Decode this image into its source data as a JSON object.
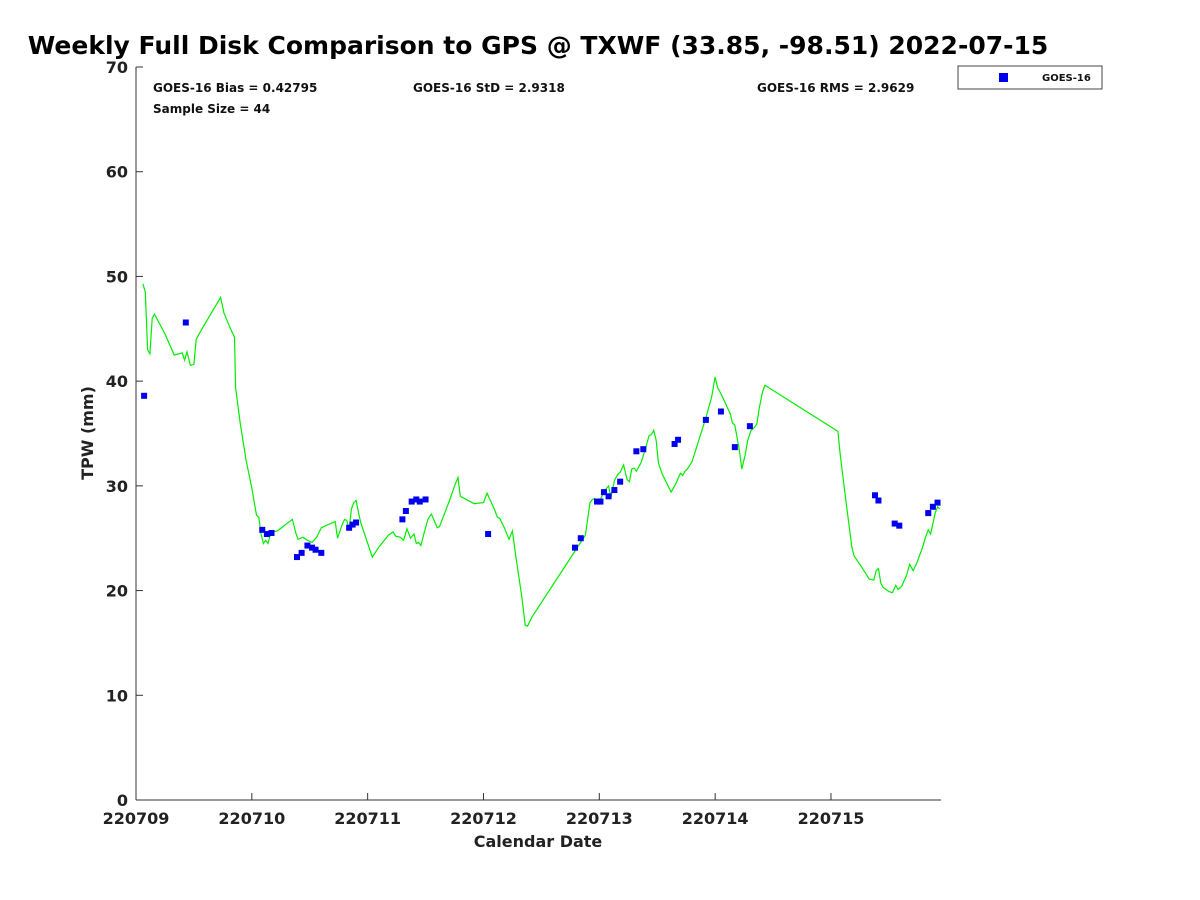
{
  "chart_data": {
    "type": "scatter",
    "title": "Weekly Full Disk Comparison to GPS @ TXWF (33.85, -98.51) 2022-07-15",
    "xlabel": "Calendar Date",
    "ylabel": "TPW (mm)",
    "xlim": [
      0,
      6.95
    ],
    "ylim": [
      0,
      70
    ],
    "yticks": [
      0,
      10,
      20,
      30,
      40,
      50,
      60,
      70
    ],
    "xticks": [
      {
        "value": 0,
        "label": "220709"
      },
      {
        "value": 1,
        "label": "220710"
      },
      {
        "value": 2,
        "label": "220711"
      },
      {
        "value": 3,
        "label": "220712"
      },
      {
        "value": 4,
        "label": "220713"
      },
      {
        "value": 5,
        "label": "220714"
      },
      {
        "value": 6,
        "label": "220715"
      }
    ],
    "stats": {
      "bias": "GOES-16 Bias = 0.42795",
      "std": "GOES-16 StD = 2.9318",
      "rms": "GOES-16 RMS = 2.9629",
      "sample_size": "Sample Size = 44"
    },
    "legend": {
      "label": "GOES-16",
      "color": "#0000ee",
      "position": "top-right"
    },
    "gps_series": {
      "name": "GPS",
      "color": "#00ee00",
      "points": [
        [
          0.06,
          49.3
        ],
        [
          0.08,
          48.5
        ],
        [
          0.1,
          43.0
        ],
        [
          0.12,
          42.6
        ],
        [
          0.14,
          46.0
        ],
        [
          0.16,
          46.4
        ],
        [
          0.25,
          44.5
        ],
        [
          0.33,
          42.5
        ],
        [
          0.4,
          42.7
        ],
        [
          0.42,
          42.0
        ],
        [
          0.44,
          42.8
        ],
        [
          0.47,
          41.5
        ],
        [
          0.5,
          41.6
        ],
        [
          0.52,
          44.0
        ],
        [
          0.57,
          45.0
        ],
        [
          0.73,
          48.0
        ],
        [
          0.76,
          46.5
        ],
        [
          0.82,
          44.9
        ],
        [
          0.85,
          44.2
        ],
        [
          0.86,
          39.4
        ],
        [
          0.9,
          36.0
        ],
        [
          0.95,
          32.5
        ],
        [
          1.0,
          29.8
        ],
        [
          1.04,
          27.2
        ],
        [
          1.06,
          27.0
        ],
        [
          1.08,
          25.4
        ],
        [
          1.1,
          24.5
        ],
        [
          1.12,
          24.8
        ],
        [
          1.14,
          24.5
        ],
        [
          1.16,
          25.4
        ],
        [
          1.18,
          25.6
        ],
        [
          1.22,
          25.7
        ],
        [
          1.35,
          26.8
        ],
        [
          1.38,
          25.5
        ],
        [
          1.4,
          24.9
        ],
        [
          1.44,
          25.1
        ],
        [
          1.48,
          24.8
        ],
        [
          1.52,
          24.6
        ],
        [
          1.56,
          25.1
        ],
        [
          1.6,
          26.0
        ],
        [
          1.72,
          26.6
        ],
        [
          1.74,
          25.0
        ],
        [
          1.78,
          26.3
        ],
        [
          1.8,
          26.8
        ],
        [
          1.82,
          26.7
        ],
        [
          1.84,
          25.8
        ],
        [
          1.86,
          27.8
        ],
        [
          1.88,
          28.4
        ],
        [
          1.9,
          28.6
        ],
        [
          1.92,
          27.5
        ],
        [
          1.94,
          26.5
        ],
        [
          2.04,
          23.2
        ],
        [
          2.1,
          24.2
        ],
        [
          2.18,
          25.3
        ],
        [
          2.22,
          25.6
        ],
        [
          2.24,
          25.2
        ],
        [
          2.28,
          25.1
        ],
        [
          2.31,
          24.8
        ],
        [
          2.34,
          25.9
        ],
        [
          2.37,
          25.0
        ],
        [
          2.4,
          25.4
        ],
        [
          2.42,
          24.5
        ],
        [
          2.44,
          24.6
        ],
        [
          2.46,
          24.3
        ],
        [
          2.49,
          25.6
        ],
        [
          2.52,
          26.8
        ],
        [
          2.55,
          27.3
        ],
        [
          2.57,
          26.8
        ],
        [
          2.6,
          26.0
        ],
        [
          2.62,
          26.1
        ],
        [
          2.71,
          28.7
        ],
        [
          2.75,
          30.0
        ],
        [
          2.78,
          30.8
        ],
        [
          2.8,
          29.0
        ],
        [
          2.92,
          28.3
        ],
        [
          3.0,
          28.4
        ],
        [
          3.03,
          29.3
        ],
        [
          3.06,
          28.6
        ],
        [
          3.1,
          27.6
        ],
        [
          3.12,
          27.0
        ],
        [
          3.14,
          26.9
        ],
        [
          3.18,
          26.0
        ],
        [
          3.22,
          24.9
        ],
        [
          3.25,
          25.7
        ],
        [
          3.28,
          23.2
        ],
        [
          3.33,
          19.5
        ],
        [
          3.36,
          16.7
        ],
        [
          3.38,
          16.6
        ],
        [
          3.42,
          17.5
        ],
        [
          3.88,
          25.3
        ],
        [
          3.92,
          28.4
        ],
        [
          3.94,
          28.7
        ],
        [
          3.96,
          28.8
        ],
        [
          4.0,
          28.5
        ],
        [
          4.05,
          29.6
        ],
        [
          4.08,
          30.0
        ],
        [
          4.1,
          28.9
        ],
        [
          4.13,
          30.5
        ],
        [
          4.16,
          31.1
        ],
        [
          4.18,
          31.3
        ],
        [
          4.21,
          32.0
        ],
        [
          4.24,
          30.6
        ],
        [
          4.26,
          30.4
        ],
        [
          4.28,
          31.6
        ],
        [
          4.3,
          31.7
        ],
        [
          4.32,
          31.4
        ],
        [
          4.36,
          32.2
        ],
        [
          4.4,
          33.6
        ],
        [
          4.43,
          34.8
        ],
        [
          4.45,
          34.9
        ],
        [
          4.47,
          35.3
        ],
        [
          4.49,
          34.4
        ],
        [
          4.51,
          32.2
        ],
        [
          4.54,
          31.2
        ],
        [
          4.58,
          30.3
        ],
        [
          4.62,
          29.4
        ],
        [
          4.66,
          30.2
        ],
        [
          4.7,
          31.2
        ],
        [
          4.72,
          31.0
        ],
        [
          4.74,
          31.4
        ],
        [
          4.76,
          31.6
        ],
        [
          4.8,
          32.3
        ],
        [
          4.86,
          34.4
        ],
        [
          4.92,
          36.5
        ],
        [
          4.97,
          38.5
        ],
        [
          5.0,
          40.4
        ],
        [
          5.02,
          39.4
        ],
        [
          5.05,
          38.8
        ],
        [
          5.08,
          38.1
        ],
        [
          5.1,
          37.6
        ],
        [
          5.13,
          36.9
        ],
        [
          5.15,
          36.0
        ],
        [
          5.17,
          35.8
        ],
        [
          5.19,
          34.6
        ],
        [
          5.21,
          33.3
        ],
        [
          5.23,
          31.6
        ],
        [
          5.26,
          33.0
        ],
        [
          5.28,
          34.3
        ],
        [
          5.31,
          35.3
        ],
        [
          5.34,
          35.6
        ],
        [
          5.36,
          35.9
        ],
        [
          5.38,
          37.4
        ],
        [
          5.41,
          39.0
        ],
        [
          5.43,
          39.6
        ],
        [
          6.06,
          35.2
        ],
        [
          6.08,
          33.0
        ],
        [
          6.13,
          28.5
        ],
        [
          6.18,
          24.2
        ],
        [
          6.2,
          23.3
        ],
        [
          6.25,
          22.5
        ],
        [
          6.29,
          21.8
        ],
        [
          6.33,
          21.1
        ],
        [
          6.37,
          21.0
        ],
        [
          6.39,
          21.9
        ],
        [
          6.41,
          22.1
        ],
        [
          6.43,
          20.7
        ],
        [
          6.45,
          20.3
        ],
        [
          6.5,
          19.9
        ],
        [
          6.53,
          19.8
        ],
        [
          6.56,
          20.5
        ],
        [
          6.58,
          20.1
        ],
        [
          6.61,
          20.4
        ],
        [
          6.65,
          21.4
        ],
        [
          6.68,
          22.5
        ],
        [
          6.71,
          21.9
        ],
        [
          6.74,
          22.6
        ],
        [
          6.79,
          24.1
        ],
        [
          6.82,
          25.2
        ],
        [
          6.84,
          25.8
        ],
        [
          6.86,
          25.4
        ],
        [
          6.88,
          26.4
        ],
        [
          6.9,
          27.4
        ],
        [
          6.92,
          28.0
        ],
        [
          6.94,
          27.8
        ]
      ]
    },
    "goes_series": {
      "name": "GOES-16",
      "color": "#0000ee",
      "points": [
        [
          0.07,
          38.6
        ],
        [
          0.43,
          45.6
        ],
        [
          1.09,
          25.8
        ],
        [
          1.13,
          25.4
        ],
        [
          1.17,
          25.5
        ],
        [
          1.39,
          23.2
        ],
        [
          1.43,
          23.6
        ],
        [
          1.48,
          24.3
        ],
        [
          1.52,
          24.1
        ],
        [
          1.55,
          23.9
        ],
        [
          1.6,
          23.6
        ],
        [
          1.84,
          26.0
        ],
        [
          1.87,
          26.3
        ],
        [
          1.9,
          26.5
        ],
        [
          2.3,
          26.8
        ],
        [
          2.33,
          27.6
        ],
        [
          2.38,
          28.5
        ],
        [
          2.42,
          28.7
        ],
        [
          2.45,
          28.5
        ],
        [
          2.5,
          28.7
        ],
        [
          3.04,
          25.4
        ],
        [
          3.79,
          24.1
        ],
        [
          3.84,
          25.0
        ],
        [
          3.98,
          28.5
        ],
        [
          4.01,
          28.5
        ],
        [
          4.04,
          29.4
        ],
        [
          4.08,
          29.0
        ],
        [
          4.13,
          29.6
        ],
        [
          4.18,
          30.4
        ],
        [
          4.32,
          33.3
        ],
        [
          4.38,
          33.5
        ],
        [
          4.65,
          34.0
        ],
        [
          4.68,
          34.4
        ],
        [
          4.92,
          36.3
        ],
        [
          5.05,
          37.1
        ],
        [
          5.17,
          33.7
        ],
        [
          5.3,
          35.7
        ],
        [
          6.38,
          29.1
        ],
        [
          6.41,
          28.6
        ],
        [
          6.55,
          26.4
        ],
        [
          6.59,
          26.2
        ],
        [
          6.84,
          27.4
        ],
        [
          6.88,
          28.0
        ],
        [
          6.92,
          28.4
        ]
      ]
    }
  }
}
